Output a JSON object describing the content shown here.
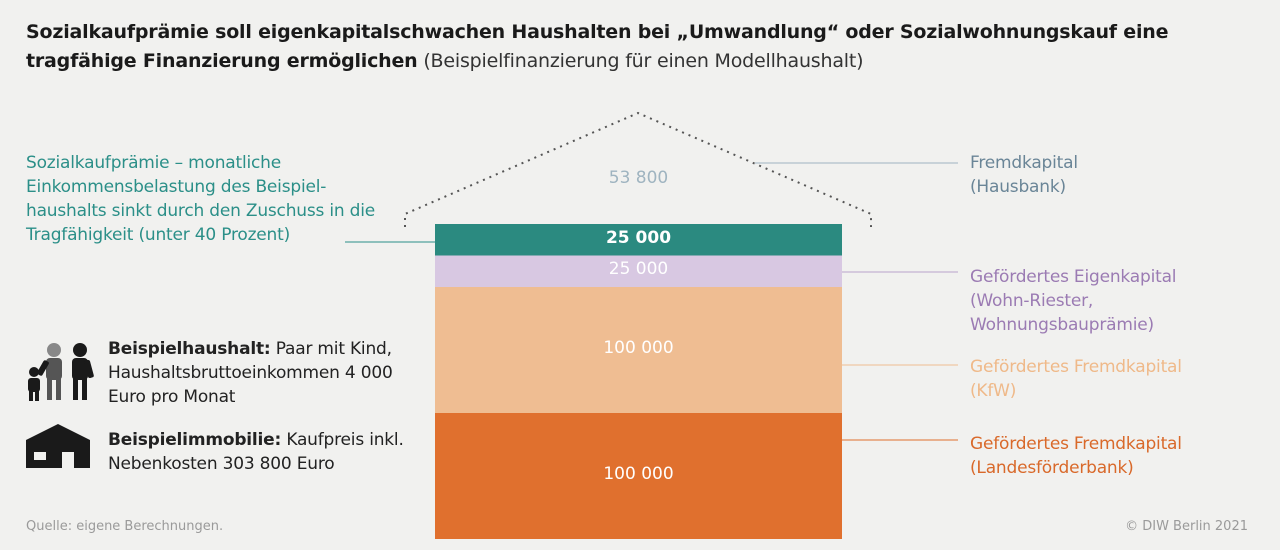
{
  "title": {
    "bold": "Sozialkaufprämie soll eigenkapitalschwachen Haushalten bei „Umwandlung“ oder Sozialwohnungskauf eine tragfähige Finanzierung ermöglichen",
    "normal": " (Beispielfinanzierung für einen Modellhaushalt)"
  },
  "chart_data": {
    "type": "bar",
    "layout": "stacked",
    "categories": [
      "Fremdkapital (Hausbank)",
      "Sozialkaufprämie",
      "Gefördertes Eigenkapital",
      "Gefördertes Fremdkapital (KfW)",
      "Gefördertes Fremdkapital (Landesförderbank)"
    ],
    "values": [
      53800,
      25000,
      25000,
      100000,
      100000
    ],
    "value_labels": [
      "53 800",
      "25 000",
      "25 000",
      "100 000",
      "100 000"
    ],
    "colors": [
      "#f1f1ef",
      "#2b8a80",
      "#d8c8e2",
      "#efbd92",
      "#e0702e"
    ],
    "label_colors": [
      "#9fb4c0",
      "#ffffff",
      "#ffffff",
      "#ffffff",
      "#ffffff"
    ]
  },
  "annotations": {
    "sozialkauf_head": "Sozialkaufprämie",
    "sozialkauf_text": " – monatliche Einkommensbelastung des Beispiel-haushalts sinkt durch den Zuschuss in die Tragfähigkeit (unter 40 Prozent)",
    "right": [
      {
        "line1": "Fremdkapital",
        "line2": "(Hausbank)",
        "line3": "",
        "color": "#6a8597"
      },
      {
        "line1": "Gefördertes Eigenkapital",
        "line2": "(Wohn-Riester,",
        "line3": "Wohnungsbauprämie)",
        "color": "#9b7bb3"
      },
      {
        "line1": "Gefördertes Fremdkapital",
        "line2": "(KfW)",
        "line3": "",
        "color": "#efb989"
      },
      {
        "line1": "Gefördertes Fremdkapital",
        "line2": "(Landesförderbank)",
        "line3": "",
        "color": "#d9692a"
      }
    ]
  },
  "info": {
    "household_head": "Beispielhaushalt:",
    "household_text": " Paar mit Kind, Haushaltsbruttoeinkommen 4 000 Euro pro Monat",
    "property_head": "Beispielimmobilie:",
    "property_text": " Kaufpreis inkl. Nebenkosten 303 800 Euro"
  },
  "icons": {
    "family": "family-icon",
    "house": "house-icon"
  },
  "footer": {
    "source": "Quelle:  eigene Berechnungen.",
    "copyright": "© DIW Berlin 2021"
  }
}
